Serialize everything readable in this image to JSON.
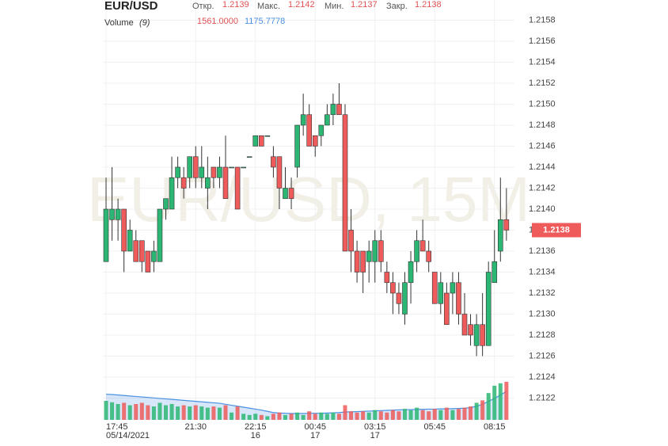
{
  "chart_data": {
    "type": "candlestick",
    "title": "EUR/USD",
    "watermark": "EUR/USD, 15M",
    "header_labels": {
      "open": "Откр.",
      "high": "Макс.",
      "low": "Мин.",
      "close": "Закр."
    },
    "categories": [
      "17:45",
      null,
      null,
      null,
      null,
      null,
      null,
      null,
      null,
      null,
      null,
      null,
      null,
      null,
      null,
      "21:30",
      null,
      null,
      null,
      null,
      null,
      null,
      null,
      null,
      null,
      "22:15",
      null,
      null,
      null,
      null,
      null,
      null,
      null,
      null,
      null,
      "00:45",
      null,
      null,
      null,
      null,
      null,
      null,
      null,
      null,
      null,
      "03:15",
      null,
      null,
      null,
      null,
      null,
      null,
      null,
      null,
      null,
      "05:45",
      null,
      null,
      null,
      null,
      null,
      null,
      null,
      null,
      null,
      "08:15",
      null,
      null
    ],
    "category_dates": [
      "05/14/2021",
      null,
      null,
      null,
      null,
      null,
      null,
      null,
      null,
      null,
      null,
      null,
      null,
      null,
      null,
      null,
      null,
      null,
      null,
      null,
      null,
      null,
      null,
      null,
      null,
      "16",
      null,
      null,
      null,
      null,
      null,
      null,
      null,
      null,
      null,
      "17",
      null,
      null,
      null,
      null,
      null,
      null,
      null,
      null,
      null,
      "17",
      null,
      null,
      null,
      null,
      null,
      null,
      null,
      null,
      null,
      null,
      null,
      null,
      null,
      null,
      null,
      null,
      null,
      null,
      null,
      null,
      null,
      null
    ],
    "open": [
      1.2135,
      1.2139,
      1.2139,
      1.214,
      1.2136,
      1.2137,
      1.2137,
      1.2136,
      1.2135,
      1.2135,
      1.214,
      1.214,
      1.2143,
      1.2143,
      1.2143,
      1.2145,
      1.2143,
      1.2142,
      1.2144,
      1.2143,
      1.2144,
      1.2144,
      1.2144,
      1.2144,
      1.2145,
      1.2146,
      1.2147,
      1.2147,
      1.2145,
      1.2145,
      1.2141,
      1.2142,
      1.2144,
      1.2148,
      1.2149,
      1.2147,
      1.2147,
      1.2148,
      1.2149,
      1.215,
      1.2149,
      1.2138,
      1.2136,
      1.2136,
      1.2135,
      1.2135,
      1.2137,
      1.2134,
      1.2133,
      1.2132,
      1.213,
      1.2133,
      1.2135,
      1.2137,
      1.2136,
      1.2134,
      1.2131,
      1.2132,
      1.2132,
      1.2133,
      1.213,
      1.2129,
      1.2127,
      1.2129,
      1.2127,
      1.2133,
      1.2136,
      1.2139
    ],
    "high": [
      1.2143,
      1.2144,
      1.2141,
      1.214,
      1.2139,
      1.2138,
      1.2137,
      1.2136,
      1.2137,
      1.214,
      1.2141,
      1.2145,
      1.2145,
      1.2144,
      1.2145,
      1.2146,
      1.2146,
      1.2145,
      1.2144,
      1.2145,
      1.2147,
      1.2144,
      1.2144,
      1.2144,
      1.2145,
      1.2147,
      1.2147,
      1.2147,
      1.2146,
      1.2145,
      1.2144,
      1.2143,
      1.2148,
      1.2151,
      1.215,
      1.2147,
      1.2148,
      1.215,
      1.2151,
      1.2152,
      1.215,
      1.214,
      1.2137,
      1.2136,
      1.2137,
      1.2138,
      1.2138,
      1.2135,
      1.2134,
      1.2133,
      1.2134,
      1.2136,
      1.2138,
      1.2139,
      1.2137,
      1.2134,
      1.2134,
      1.2133,
      1.2134,
      1.2134,
      1.2132,
      1.213,
      1.213,
      1.2132,
      1.2135,
      1.2138,
      1.2143,
      1.2142
    ],
    "low": [
      1.2135,
      1.2137,
      1.2137,
      1.2134,
      1.2136,
      1.2135,
      1.2134,
      1.2134,
      1.2134,
      1.2135,
      1.2139,
      1.214,
      1.2142,
      1.2141,
      1.2142,
      1.2142,
      1.2142,
      1.214,
      1.2142,
      1.2142,
      1.2141,
      1.2144,
      1.214,
      1.2144,
      1.2145,
      1.2146,
      1.2146,
      1.2147,
      1.2143,
      1.214,
      1.2141,
      1.214,
      1.2143,
      1.2147,
      1.2146,
      1.2145,
      1.2146,
      1.2148,
      1.2148,
      1.2149,
      1.2136,
      1.2134,
      1.2133,
      1.2132,
      1.2133,
      1.2133,
      1.2134,
      1.2132,
      1.213,
      1.213,
      1.2129,
      1.2131,
      1.2134,
      1.2136,
      1.2134,
      1.2131,
      1.213,
      1.2129,
      1.213,
      1.2129,
      1.2128,
      1.2127,
      1.2126,
      1.2126,
      1.2127,
      1.2133,
      1.2135,
      1.2137
    ],
    "close": [
      1.214,
      1.214,
      1.214,
      1.2136,
      1.2138,
      1.2135,
      1.2135,
      1.2134,
      1.2136,
      1.214,
      1.2141,
      1.2143,
      1.2144,
      1.2142,
      1.2145,
      1.2143,
      1.2144,
      1.2143,
      1.2143,
      1.2144,
      1.2141,
      1.2144,
      1.214,
      1.2144,
      1.2145,
      1.2147,
      1.2146,
      1.2147,
      1.2144,
      1.2142,
      1.2142,
      1.2141,
      1.2148,
      1.2149,
      1.2146,
      1.2146,
      1.2148,
      1.2149,
      1.215,
      1.2149,
      1.2136,
      1.2136,
      1.2134,
      1.2134,
      1.2136,
      1.2137,
      1.2135,
      1.2133,
      1.2132,
      1.2131,
      1.2133,
      1.2135,
      1.2137,
      1.2136,
      1.2135,
      1.2131,
      1.2133,
      1.2129,
      1.2133,
      1.213,
      1.2128,
      1.2128,
      1.2129,
      1.2127,
      1.2134,
      1.2135,
      1.2139,
      1.2138
    ],
    "up_color": "#2bb673",
    "down_color": "#ef5a5a",
    "ylim": [
      1.212,
      1.216
    ],
    "yticks": [
      1.2122,
      1.2124,
      1.2126,
      1.2128,
      {
        "value": 1.213,
        "label": "1.2130"
      },
      1.2132,
      1.2134,
      1.2136,
      1.2138,
      {
        "value": 1.214,
        "label": "1.2140"
      },
      1.2142,
      1.2144,
      1.2146,
      1.2148,
      {
        "value": 1.215,
        "label": "1.2150"
      },
      1.2152,
      1.2154,
      1.2156,
      1.2158
    ],
    "grid": true,
    "volume": {
      "name": "Volume",
      "period": "(9)",
      "last_label": "1561.0000",
      "ma_last_label": "1175.7778",
      "color": "#4a90e2",
      "ylim": [
        0,
        3250
      ],
      "values": [
        780,
        720,
        650,
        700,
        600,
        650,
        700,
        600,
        550,
        700,
        600,
        650,
        550,
        600,
        550,
        600,
        550,
        500,
        550,
        500,
        600,
        300,
        550,
        250,
        200,
        250,
        200,
        150,
        250,
        300,
        200,
        250,
        300,
        200,
        350,
        250,
        300,
        250,
        300,
        250,
        600,
        350,
        300,
        350,
        300,
        400,
        350,
        300,
        400,
        350,
        450,
        400,
        500,
        400,
        350,
        450,
        400,
        500,
        400,
        450,
        500,
        550,
        700,
        800,
        1100,
        1400,
        1500,
        1561
      ],
      "ma_values": [
        1050,
        1040,
        1020,
        1000,
        980,
        960,
        940,
        920,
        900,
        880,
        860,
        840,
        820,
        800,
        780,
        760,
        740,
        720,
        700,
        680,
        640,
        600,
        560,
        520,
        480,
        440,
        400,
        350,
        300,
        280,
        270,
        260,
        260,
        260,
        270,
        270,
        270,
        280,
        290,
        300,
        320,
        330,
        340,
        350,
        360,
        370,
        380,
        390,
        400,
        410,
        420,
        420,
        430,
        430,
        440,
        440,
        450,
        450,
        460,
        470,
        480,
        500,
        560,
        640,
        760,
        880,
        1020,
        1175.7778
      ]
    }
  }
}
